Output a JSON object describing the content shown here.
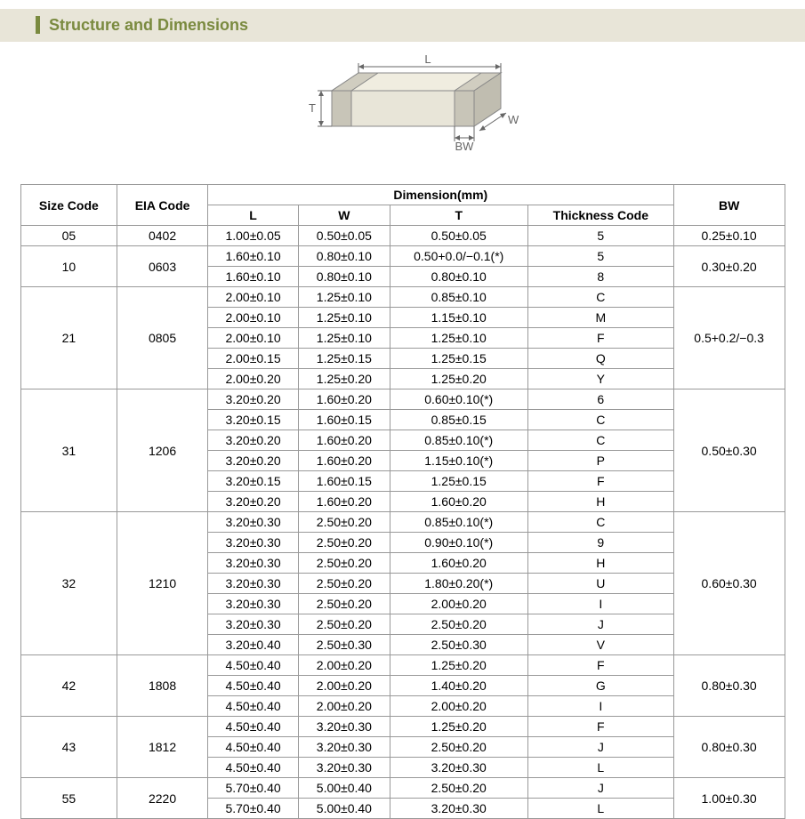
{
  "section_title": "Structure and Dimensions",
  "diagram": {
    "labels": {
      "L": "L",
      "W": "W",
      "T": "T",
      "BW": "BW"
    },
    "stroke": "#888888",
    "fill_top": "#f0ede0",
    "fill_side": "#d8d5c8",
    "fill_front": "#e8e5d8",
    "fill_term": "#c8c5b8"
  },
  "table": {
    "header": {
      "size_code": "Size Code",
      "eia_code": "EIA Code",
      "dimension_group": "Dimension(mm)",
      "L": "L",
      "W": "W",
      "T": "T",
      "thickness_code": "Thickness  Code",
      "BW": "BW"
    },
    "groups": [
      {
        "size": "05",
        "eia": "0402",
        "bw": "0.25±0.10",
        "rows": [
          {
            "L": "1.00±0.05",
            "W": "0.50±0.05",
            "T": "0.50±0.05",
            "tc": "5"
          }
        ]
      },
      {
        "size": "10",
        "eia": "0603",
        "bw": "0.30±0.20",
        "rows": [
          {
            "L": "1.60±0.10",
            "W": "0.80±0.10",
            "T": "0.50+0.0/−0.1(*)",
            "tc": "5"
          },
          {
            "L": "1.60±0.10",
            "W": "0.80±0.10",
            "T": "0.80±0.10",
            "tc": "8"
          }
        ]
      },
      {
        "size": "21",
        "eia": "0805",
        "bw": "0.5+0.2/−0.3",
        "rows": [
          {
            "L": "2.00±0.10",
            "W": "1.25±0.10",
            "T": "0.85±0.10",
            "tc": "C"
          },
          {
            "L": "2.00±0.10",
            "W": "1.25±0.10",
            "T": "1.15±0.10",
            "tc": "M"
          },
          {
            "L": "2.00±0.10",
            "W": "1.25±0.10",
            "T": "1.25±0.10",
            "tc": "F"
          },
          {
            "L": "2.00±0.15",
            "W": "1.25±0.15",
            "T": "1.25±0.15",
            "tc": "Q"
          },
          {
            "L": "2.00±0.20",
            "W": "1.25±0.20",
            "T": "1.25±0.20",
            "tc": "Y"
          }
        ]
      },
      {
        "size": "31",
        "eia": "1206",
        "bw": "0.50±0.30",
        "rows": [
          {
            "L": "3.20±0.20",
            "W": "1.60±0.20",
            "T": "0.60±0.10(*)",
            "tc": "6"
          },
          {
            "L": "3.20±0.15",
            "W": "1.60±0.15",
            "T": "0.85±0.15",
            "tc": "C"
          },
          {
            "L": "3.20±0.20",
            "W": "1.60±0.20",
            "T": "0.85±0.10(*)",
            "tc": "C"
          },
          {
            "L": "3.20±0.20",
            "W": "1.60±0.20",
            "T": "1.15±0.10(*)",
            "tc": "P"
          },
          {
            "L": "3.20±0.15",
            "W": "1.60±0.15",
            "T": "1.25±0.15",
            "tc": "F"
          },
          {
            "L": "3.20±0.20",
            "W": "1.60±0.20",
            "T": "1.60±0.20",
            "tc": "H"
          }
        ]
      },
      {
        "size": "32",
        "eia": "1210",
        "bw": "0.60±0.30",
        "rows": [
          {
            "L": "3.20±0.30",
            "W": "2.50±0.20",
            "T": "0.85±0.10(*)",
            "tc": "C"
          },
          {
            "L": "3.20±0.30",
            "W": "2.50±0.20",
            "T": "0.90±0.10(*)",
            "tc": "9"
          },
          {
            "L": "3.20±0.30",
            "W": "2.50±0.20",
            "T": "1.60±0.20",
            "tc": "H"
          },
          {
            "L": "3.20±0.30",
            "W": "2.50±0.20",
            "T": "1.80±0.20(*)",
            "tc": "U"
          },
          {
            "L": "3.20±0.30",
            "W": "2.50±0.20",
            "T": "2.00±0.20",
            "tc": "I"
          },
          {
            "L": "3.20±0.30",
            "W": "2.50±0.20",
            "T": "2.50±0.20",
            "tc": "J"
          },
          {
            "L": "3.20±0.40",
            "W": "2.50±0.30",
            "T": "2.50±0.30",
            "tc": "V"
          }
        ]
      },
      {
        "size": "42",
        "eia": "1808",
        "bw": "0.80±0.30",
        "rows": [
          {
            "L": "4.50±0.40",
            "W": "2.00±0.20",
            "T": "1.25±0.20",
            "tc": "F"
          },
          {
            "L": "4.50±0.40",
            "W": "2.00±0.20",
            "T": "1.40±0.20",
            "tc": "G"
          },
          {
            "L": "4.50±0.40",
            "W": "2.00±0.20",
            "T": "2.00±0.20",
            "tc": "I"
          }
        ]
      },
      {
        "size": "43",
        "eia": "1812",
        "bw": "0.80±0.30",
        "rows": [
          {
            "L": "4.50±0.40",
            "W": "3.20±0.30",
            "T": "1.25±0.20",
            "tc": "F"
          },
          {
            "L": "4.50±0.40",
            "W": "3.20±0.30",
            "T": "2.50±0.20",
            "tc": "J"
          },
          {
            "L": "4.50±0.40",
            "W": "3.20±0.30",
            "T": "3.20±0.30",
            "tc": "L"
          }
        ]
      },
      {
        "size": "55",
        "eia": "2220",
        "bw": "1.00±0.30",
        "rows": [
          {
            "L": "5.70±0.40",
            "W": "5.00±0.40",
            "T": "2.50±0.20",
            "tc": "J"
          },
          {
            "L": "5.70±0.40",
            "W": "5.00±0.40",
            "T": "3.20±0.30",
            "tc": "L"
          }
        ]
      }
    ]
  },
  "colors": {
    "accent": "#7a8a3f",
    "header_bg": "#e8e5d8",
    "border": "#999999",
    "text": "#333333"
  }
}
